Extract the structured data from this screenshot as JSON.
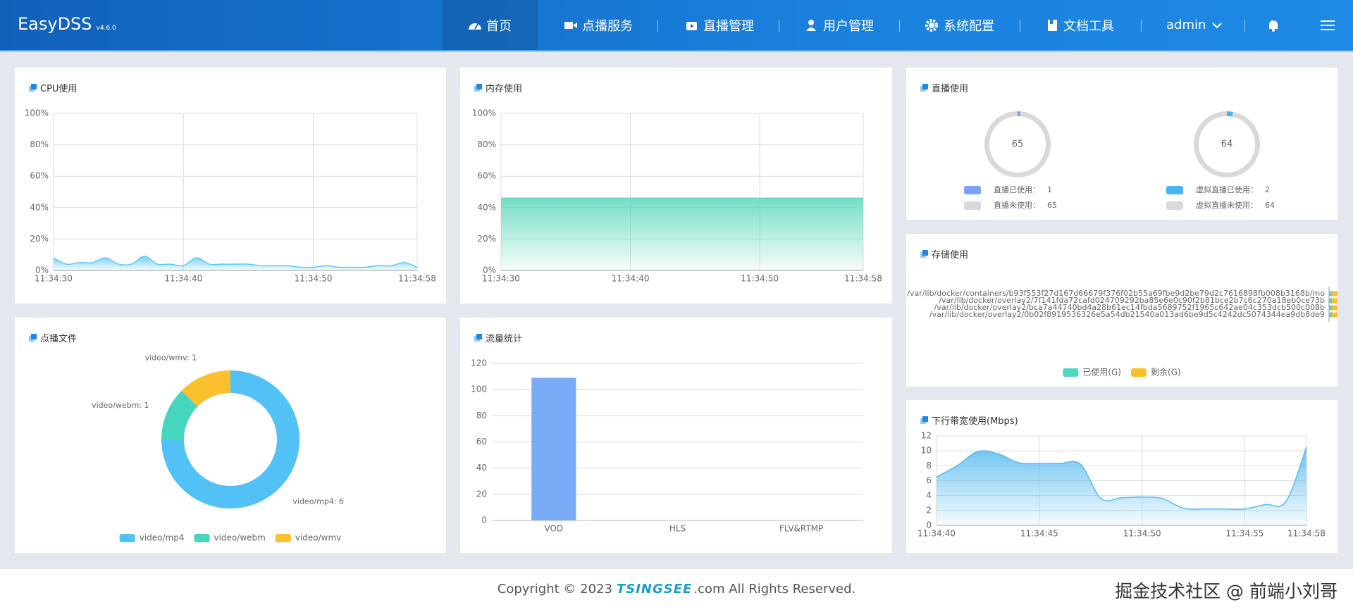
{
  "header": {
    "logo": "EasyDSS",
    "version": "v4.6.0",
    "nav": [
      "首页",
      "点播服务",
      "直播管理",
      "用户管理",
      "系统配置",
      "文档工具"
    ],
    "user": "admin"
  },
  "chart_data": [
    {
      "type": "line",
      "area": true,
      "title": "CPU使用",
      "categories": [
        "11:34:30",
        null,
        null,
        null,
        null,
        null,
        null,
        null,
        null,
        null,
        "11:34:40",
        null,
        null,
        null,
        null,
        null,
        null,
        null,
        null,
        null,
        "11:34:50",
        null,
        null,
        null,
        null,
        null,
        null,
        null,
        "11:34:58"
      ],
      "values": [
        8,
        4,
        5,
        5,
        8,
        4,
        4,
        9,
        4,
        4,
        3,
        8,
        4,
        4,
        4,
        4,
        3,
        3,
        3,
        2,
        2,
        3,
        2,
        2,
        2,
        3,
        3,
        5,
        2
      ],
      "color": "#5bc8f5",
      "ylim": [
        0,
        100
      ],
      "yticks": [
        {
          "value": 0,
          "label": "0%"
        },
        {
          "value": 20,
          "label": "20%"
        },
        {
          "value": 40,
          "label": "40%"
        },
        {
          "value": 60,
          "label": "60%"
        },
        {
          "value": 80,
          "label": "80%"
        },
        {
          "value": 100,
          "label": "100%"
        }
      ],
      "grid": true
    },
    {
      "type": "line",
      "area": true,
      "title": "内存使用",
      "categories": [
        "11:34:30",
        null,
        null,
        null,
        null,
        null,
        null,
        null,
        null,
        null,
        "11:34:40",
        null,
        null,
        null,
        null,
        null,
        null,
        null,
        null,
        null,
        "11:34:50",
        null,
        null,
        null,
        null,
        null,
        null,
        null,
        "11:34:58"
      ],
      "values": [
        46,
        46,
        46,
        46,
        46,
        46,
        46,
        46,
        46,
        46,
        46,
        46,
        46,
        46,
        46,
        46,
        46,
        46,
        46,
        46,
        46,
        46,
        46,
        46,
        46,
        46,
        46,
        46,
        46
      ],
      "color": "#5dd8bc",
      "ylim": [
        0,
        100
      ],
      "yticks": [
        {
          "value": 0,
          "label": "0%"
        },
        {
          "value": 20,
          "label": "20%"
        },
        {
          "value": 40,
          "label": "40%"
        },
        {
          "value": 60,
          "label": "60%"
        },
        {
          "value": 80,
          "label": "80%"
        },
        {
          "value": 100,
          "label": "100%"
        }
      ],
      "grid": true
    },
    {
      "type": "gauge",
      "title": "直播使用",
      "categories": [
        "直播已使用：",
        "直播未使用："
      ],
      "values": [
        1,
        65
      ],
      "colors": [
        "#7aa3f5",
        "#d9d9d9"
      ]
    },
    {
      "type": "gauge",
      "categories": [
        "虚拟直播已使用：",
        "虚拟直播未使用："
      ],
      "values": [
        2,
        64
      ],
      "colors": [
        "#45b6f2",
        "#d9d9d9"
      ]
    },
    {
      "type": "hbar",
      "title": "存储使用",
      "categories": [
        "/var/lib/docker/containers/b93f553f27d167d66679f376f02b55a69fbe9d2be79d2c7616898fb008b3168b/mo",
        "/var/lib/docker/overlay2/7f141fda72cafd024709292ba85e6e0c90f2b81bce2b7c6c270a18eb0ce73b",
        "/var/lib/docker/overlay2/bca7a44740bd4a28b61ec14fbda5689752f1965c642ae04c353dcb500c008b",
        "/var/lib/docker/overlay2/0b02f8919536326e5a54db21540a013ad6be9d5c4242dc5074344ea9db8de9"
      ],
      "series": [
        {
          "name": "已使用(G)",
          "color": "#4ed8c0",
          "values": [
            1,
            1,
            1,
            1
          ]
        },
        {
          "name": "剩余(G)",
          "color": "#fbc02d",
          "values": [
            3,
            3,
            3,
            3
          ]
        }
      ],
      "stacked": true,
      "xlim": [
        0,
        100
      ]
    },
    {
      "type": "pie",
      "title": "点播文件",
      "donut": true,
      "categories": [
        "video/mp4",
        "video/webm",
        "video/wmv"
      ],
      "values": [
        6,
        1,
        1
      ],
      "value_labels": [
        "video/mp4: 6",
        "video/webm: 1",
        "video/wmv: 1"
      ],
      "colors": [
        "#52c1f5",
        "#45d6bd",
        "#fbc02d"
      ]
    },
    {
      "type": "bar",
      "title": "流量统计",
      "categories": [
        "VOD",
        "HLS",
        "FLV&RTMP"
      ],
      "values": [
        109,
        0,
        0
      ],
      "color": "#7baaf7",
      "ylim": [
        0,
        120
      ],
      "yticks": [
        0,
        20,
        40,
        60,
        80,
        100,
        120
      ],
      "grid": true
    },
    {
      "type": "line",
      "area": true,
      "title": "下行带宽使用(Mbps)",
      "categories": [
        "11:34:40",
        null,
        null,
        null,
        null,
        "11:34:45",
        null,
        null,
        null,
        null,
        "11:34:50",
        null,
        null,
        null,
        null,
        "11:34:55",
        null,
        null,
        "11:34:58"
      ],
      "values": [
        6.5,
        8,
        9.9,
        9.6,
        8.4,
        8.3,
        8.3,
        8.2,
        3.6,
        3.7,
        3.8,
        3.6,
        2.3,
        2.2,
        2.2,
        2.2,
        2.8,
        3.2,
        10.5
      ],
      "color": "#55b9ef",
      "ylim": [
        0,
        12
      ],
      "yticks": [
        0,
        2,
        4,
        6,
        8,
        10,
        12
      ],
      "grid": true
    }
  ],
  "footer": {
    "text_before": "Copyright © 2023",
    "brand": "TSINGSEE",
    "text_after": ".com All Rights Reserved."
  },
  "watermark": "掘金技术社区 @ 前端小刘哥"
}
